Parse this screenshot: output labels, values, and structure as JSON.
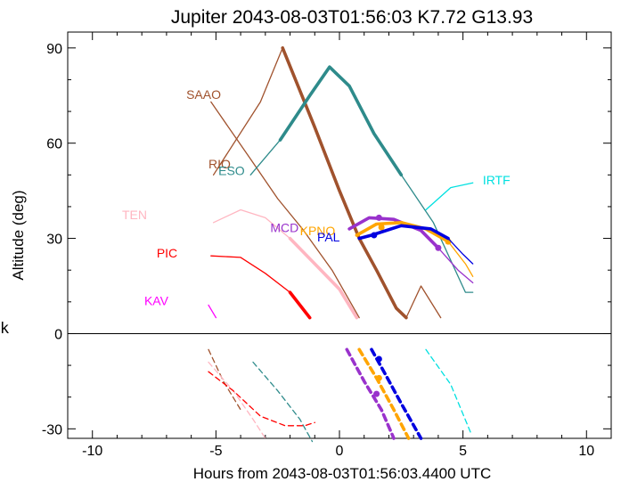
{
  "chart_data": {
    "type": "line",
    "title": "Jupiter 2043-08-03T01:56:03  K7.72  G13.93",
    "xlabel": "Hours from 2043-08-03T01:56:03.4400 UTC",
    "ylabel": "Altitude (deg)",
    "side_label": "k",
    "xlim": [
      -11,
      11
    ],
    "ylim": [
      -33,
      95
    ],
    "xticks": [
      -10,
      -5,
      0,
      5,
      10
    ],
    "yticks": [
      -30,
      0,
      30,
      60,
      90
    ],
    "xtick_labels": [
      "-10",
      "-5",
      "0",
      "5",
      "10"
    ],
    "ytick_labels": [
      "-30",
      "0",
      "30",
      "60",
      "90"
    ],
    "zero_line": true,
    "series": [
      {
        "name": "SAAO",
        "color": "#a0522d",
        "label_pos": [
          -6.2,
          74
        ],
        "thin_pre": [
          [
            -5.2,
            73
          ],
          [
            -3.6,
            55
          ],
          [
            -2.5,
            42.5
          ],
          [
            -1.5,
            33
          ],
          [
            -0.3,
            20
          ],
          [
            0.8,
            5
          ]
        ],
        "thin_pre_dashed": [
          [
            -5.3,
            -5
          ],
          [
            -4.7,
            -15
          ],
          [
            -4.0,
            -24
          ]
        ],
        "thick": [],
        "thin_post": []
      },
      {
        "name": "RIO",
        "color": "#a0522d",
        "label_pos": [
          -5.3,
          52
        ],
        "thin_pre": [
          [
            -5.1,
            50
          ],
          [
            -3.2,
            73
          ],
          [
            -2.3,
            90
          ]
        ],
        "thick": [
          [
            -2.3,
            90
          ],
          [
            -1.0,
            65
          ],
          [
            0.0,
            45
          ],
          [
            0.8,
            30
          ],
          [
            1.5,
            20
          ],
          [
            2.3,
            8
          ],
          [
            2.7,
            5
          ]
        ],
        "thin_post": [
          [
            2.7,
            5
          ],
          [
            3.3,
            15
          ],
          [
            4.1,
            5
          ]
        ],
        "thick_dashed": []
      },
      {
        "name": "ESO",
        "color": "#2e8b8b",
        "label_pos": [
          -4.9,
          50
        ],
        "thin_pre": [
          [
            -3.6,
            50
          ],
          [
            -2.4,
            61
          ]
        ],
        "thick": [
          [
            -2.4,
            61
          ],
          [
            -1.2,
            75
          ],
          [
            -0.4,
            84
          ],
          [
            0.4,
            78
          ],
          [
            1.4,
            63
          ],
          [
            2.5,
            50
          ]
        ],
        "thin_post": [
          [
            2.5,
            50
          ],
          [
            3.8,
            35
          ],
          [
            5.1,
            13
          ],
          [
            5.4,
            13
          ]
        ],
        "thin_pre_dashed": [
          [
            -3.5,
            -9
          ],
          [
            -2.5,
            -18
          ],
          [
            -1.6,
            -27
          ],
          [
            -1.1,
            -34
          ]
        ]
      },
      {
        "name": "IRTF",
        "color": "#00e0e0",
        "label_pos": [
          5.8,
          47
        ],
        "thin_post": [
          [
            3.5,
            39
          ],
          [
            4.5,
            46
          ],
          [
            5.4,
            47.5
          ]
        ],
        "thin_pre_dashed": [
          [
            3.5,
            -5
          ],
          [
            4.5,
            -16
          ],
          [
            5.3,
            -31
          ]
        ]
      },
      {
        "name": "TEN",
        "color": "#ffb6c1",
        "label_pos": [
          -8.8,
          36
        ],
        "thin_pre": [
          [
            -5.1,
            35
          ],
          [
            -4.0,
            39
          ],
          [
            -3.0,
            36.5
          ],
          [
            -2.0,
            30
          ]
        ],
        "thick": [
          [
            -2.0,
            30
          ],
          [
            -1.0,
            22
          ],
          [
            0.0,
            14
          ],
          [
            0.7,
            5
          ]
        ],
        "thin_pre_dashed": [
          [
            -5.3,
            -9
          ],
          [
            -4.3,
            -18
          ],
          [
            -3.5,
            -27
          ],
          [
            -3.0,
            -33
          ]
        ]
      },
      {
        "name": "MCD",
        "color": "#9932cc",
        "label_pos": [
          -2.8,
          32
        ],
        "thin_pre": [],
        "thick": [
          [
            0.4,
            33
          ],
          [
            1.2,
            36.5
          ],
          [
            2.2,
            36
          ],
          [
            3.3,
            32.5
          ],
          [
            4.0,
            27
          ]
        ],
        "thin_post": [
          [
            4.0,
            27
          ],
          [
            4.8,
            20
          ],
          [
            5.4,
            16
          ]
        ],
        "thick_dashed": [
          [
            0.3,
            -5
          ],
          [
            1.0,
            -15
          ],
          [
            1.7,
            -24
          ],
          [
            2.2,
            -33
          ]
        ],
        "markers": [
          [
            1.6,
            36.5
          ],
          [
            4.0,
            27
          ],
          [
            1.5,
            -19
          ]
        ]
      },
      {
        "name": "KPNO",
        "color": "#ffa500",
        "label_pos": [
          -1.6,
          31
        ],
        "thick": [
          [
            0.7,
            31
          ],
          [
            1.5,
            34.5
          ],
          [
            2.5,
            35
          ],
          [
            3.5,
            33
          ],
          [
            4.4,
            29
          ]
        ],
        "thin_post": [
          [
            4.4,
            29
          ],
          [
            5.1,
            22
          ],
          [
            5.4,
            18
          ]
        ],
        "thick_dashed": [
          [
            0.8,
            -5
          ],
          [
            1.5,
            -14
          ],
          [
            2.2,
            -24
          ],
          [
            2.8,
            -33
          ]
        ],
        "markers": [
          [
            1.7,
            33.5
          ],
          [
            4.4,
            29
          ],
          [
            1.6,
            -14
          ]
        ]
      },
      {
        "name": "PAL",
        "color": "#0000e0",
        "label_pos": [
          -0.9,
          29
        ],
        "thick": [
          [
            0.8,
            30
          ],
          [
            1.3,
            31
          ],
          [
            2.5,
            34
          ],
          [
            3.7,
            33
          ],
          [
            4.4,
            30
          ]
        ],
        "thin_post": [
          [
            4.4,
            30
          ],
          [
            5.0,
            25
          ],
          [
            5.4,
            22
          ]
        ],
        "thick_dashed": [
          [
            1.3,
            -5
          ],
          [
            1.8,
            -12
          ],
          [
            2.5,
            -22
          ],
          [
            3.3,
            -33
          ]
        ],
        "markers": [
          [
            1.4,
            31
          ],
          [
            1.6,
            -8
          ]
        ]
      },
      {
        "name": "PIC",
        "color": "#ff0000",
        "label_pos": [
          -7.4,
          24
        ],
        "thin_pre": [
          [
            -5.2,
            24.5
          ],
          [
            -4.0,
            24
          ],
          [
            -3.0,
            19
          ],
          [
            -2.0,
            13
          ]
        ],
        "thick": [
          [
            -2.0,
            13
          ],
          [
            -1.2,
            5
          ]
        ],
        "thin_pre_dashed": [
          [
            -5.3,
            -12
          ],
          [
            -4.3,
            -18
          ],
          [
            -3.2,
            -26
          ],
          [
            -2.2,
            -29
          ],
          [
            -1.4,
            -29
          ],
          [
            -1.0,
            -28
          ]
        ]
      },
      {
        "name": "KAV",
        "color": "#ff00ff",
        "label_pos": [
          -7.9,
          9
        ],
        "thin_pre": [
          [
            -5.3,
            9
          ],
          [
            -5.0,
            5
          ]
        ]
      }
    ]
  }
}
